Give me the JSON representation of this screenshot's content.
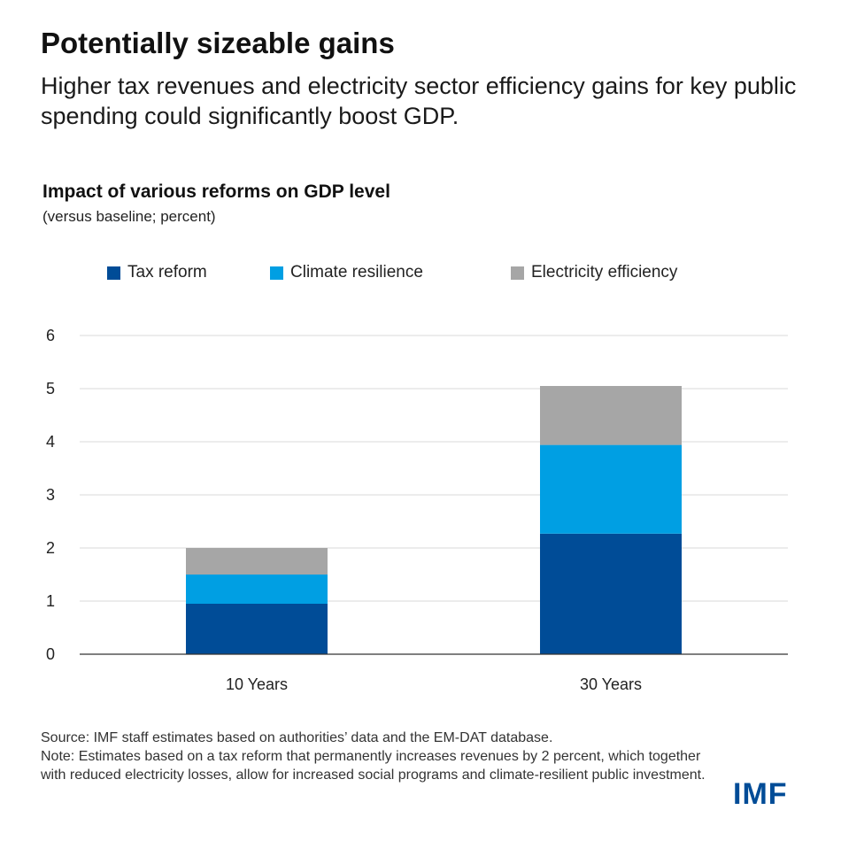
{
  "header": {
    "title": "Potentially sizeable gains",
    "subtitle": "Higher tax revenues and electricity sector efficiency gains for key public spending could significantly boost GDP."
  },
  "chart_data": {
    "type": "bar",
    "stacked": true,
    "title": "Impact of various reforms on GDP level",
    "subtitle": "(versus baseline; percent)",
    "xlabel": "",
    "ylabel": "",
    "categories": [
      "10 Years",
      "30 Years"
    ],
    "series": [
      {
        "name": "Tax reform",
        "color": "#004c97",
        "values": [
          0.95,
          2.27
        ]
      },
      {
        "name": "Climate resilience",
        "color": "#009fe3",
        "values": [
          0.55,
          1.67
        ]
      },
      {
        "name": "Electricity efficiency",
        "color": "#a6a6a6",
        "values": [
          0.5,
          1.11
        ]
      }
    ],
    "ylim": [
      0,
      6
    ],
    "yticks": [
      "0",
      "1",
      "2",
      "3",
      "4",
      "5",
      "6"
    ],
    "grid": true,
    "legend_position": "top"
  },
  "footer": {
    "source": "Source: IMF staff estimates based on authorities’ data and the EM-DAT database.",
    "note": "Note: Estimates based on a tax reform that permanently increases revenues by 2 percent, which together with reduced electricity losses, allow for increased social programs and climate-resilient public investment.",
    "logo_text": "IMF"
  }
}
